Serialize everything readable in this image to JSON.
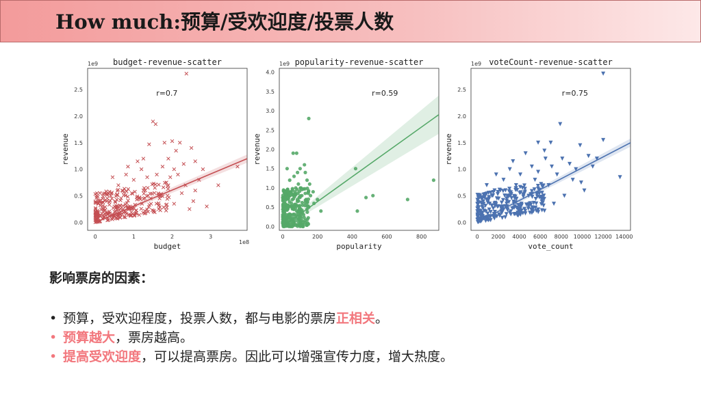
{
  "header": {
    "title": "How much:预算/受欢迎度/投票人数"
  },
  "summary": {
    "heading": "影响票房的因素：",
    "bullets": [
      {
        "parts": [
          {
            "text": "预算，受欢迎程度，投票人数，都与电影的票房",
            "hl": false
          },
          {
            "text": "正相关",
            "hl": true
          },
          {
            "text": "。",
            "hl": false
          }
        ],
        "dot": "normal"
      },
      {
        "parts": [
          {
            "text": "预算越大",
            "hl": true
          },
          {
            "text": "，票房越高。",
            "hl": false
          }
        ],
        "dot": "red"
      },
      {
        "parts": [
          {
            "text": "提高受欢迎度",
            "hl": true
          },
          {
            "text": "，可以提高票房。因此可以增强宣传力度，增大热度。",
            "hl": false
          }
        ],
        "dot": "red"
      }
    ]
  },
  "colors": {
    "accent": "#f2777d",
    "budget": "#c44e52",
    "popularity": "#55a868",
    "vote": "#4c72b0"
  },
  "chart_data": [
    {
      "type": "scatter",
      "title": "budget-revenue-scatter",
      "xlabel": "budget",
      "ylabel": "revenue",
      "x_offset_label": "1e8",
      "y_offset_label": "1e9",
      "xlim": [
        -0.2,
        3.95
      ],
      "ylim": [
        -0.15,
        2.9
      ],
      "xticks": [
        0,
        1,
        2,
        3
      ],
      "yticks": [
        0.0,
        0.5,
        1.0,
        1.5,
        2.0,
        2.5
      ],
      "r_label": "r=0.7",
      "marker": "x",
      "color": "#c44e52",
      "regression": {
        "x": [
          0,
          3.95
        ],
        "y": [
          0.0,
          1.2
        ]
      },
      "points": [
        [
          2.37,
          2.8
        ],
        [
          1.5,
          1.9
        ],
        [
          1.57,
          1.85
        ],
        [
          2.0,
          1.53
        ],
        [
          2.2,
          1.5
        ],
        [
          1.4,
          1.47
        ],
        [
          1.8,
          1.5
        ],
        [
          2.1,
          1.35
        ],
        [
          2.5,
          1.4
        ],
        [
          2.8,
          1.0
        ],
        [
          2.6,
          0.6
        ],
        [
          2.55,
          0.4
        ],
        [
          2.45,
          0.25
        ],
        [
          1.95,
          0.85
        ],
        [
          3.7,
          1.05
        ],
        [
          2.9,
          0.3
        ],
        [
          3.2,
          0.7
        ],
        [
          0.8,
          0.9
        ],
        [
          1.0,
          0.8
        ],
        [
          1.2,
          1.0
        ],
        [
          0.6,
          0.7
        ],
        [
          0.4,
          0.5
        ],
        [
          1.3,
          0.6
        ],
        [
          1.6,
          0.9
        ],
        [
          1.7,
          0.5
        ],
        [
          0.9,
          0.3
        ],
        [
          0.3,
          0.4
        ],
        [
          2.3,
          1.1
        ],
        [
          1.9,
          1.2
        ],
        [
          1.1,
          1.15
        ],
        [
          2.7,
          0.8
        ],
        [
          0.5,
          0.2
        ],
        [
          1.45,
          0.35
        ],
        [
          1.85,
          0.75
        ],
        [
          2.25,
          0.55
        ],
        [
          1.25,
          1.2
        ],
        [
          0.7,
          0.6
        ],
        [
          2.05,
          1.0
        ],
        [
          1.55,
          0.65
        ],
        [
          1.75,
          1.05
        ],
        [
          2.15,
          0.9
        ],
        [
          2.6,
          1.15
        ],
        [
          0.95,
          0.55
        ],
        [
          1.15,
          0.45
        ],
        [
          1.35,
          0.85
        ],
        [
          0.45,
          0.85
        ],
        [
          0.85,
          1.05
        ],
        [
          2.35,
          0.7
        ],
        [
          2.05,
          0.35
        ],
        [
          1.65,
          0.25
        ]
      ]
    },
    {
      "type": "scatter",
      "title": "popularity-revenue-scatter",
      "xlabel": "popularity",
      "ylabel": "revenue",
      "y_offset_label": "1e9",
      "xlim": [
        -20,
        900
      ],
      "ylim": [
        -0.1,
        4.1
      ],
      "xticks": [
        0,
        200,
        400,
        600,
        800
      ],
      "yticks": [
        0.0,
        0.5,
        1.0,
        1.5,
        2.0,
        2.5,
        3.0,
        3.5,
        4.0
      ],
      "r_label": "r=0.59",
      "marker": "o",
      "color": "#55a868",
      "regression": {
        "x": [
          0,
          900
        ],
        "y": [
          0.0,
          2.9
        ]
      },
      "points": [
        [
          150,
          2.8
        ],
        [
          60,
          1.9
        ],
        [
          80,
          1.9
        ],
        [
          25,
          1.5
        ],
        [
          100,
          1.5
        ],
        [
          130,
          1.4
        ],
        [
          420,
          1.5
        ],
        [
          430,
          0.4
        ],
        [
          480,
          0.75
        ],
        [
          520,
          0.8
        ],
        [
          720,
          0.7
        ],
        [
          870,
          1.2
        ],
        [
          150,
          0.5
        ],
        [
          180,
          0.6
        ],
        [
          200,
          0.7
        ],
        [
          220,
          0.4
        ],
        [
          110,
          0.8
        ],
        [
          90,
          1.1
        ],
        [
          40,
          1.2
        ],
        [
          70,
          0.9
        ],
        [
          120,
          0.3
        ],
        [
          160,
          0.8
        ],
        [
          140,
          1.2
        ],
        [
          50,
          0.6
        ],
        [
          85,
          1.4
        ],
        [
          105,
          1.0
        ],
        [
          175,
          0.9
        ],
        [
          125,
          1.6
        ],
        [
          65,
          1.3
        ],
        [
          30,
          0.9
        ],
        [
          95,
          0.45
        ],
        [
          155,
          1.1
        ],
        [
          115,
          0.55
        ],
        [
          75,
          1.0
        ],
        [
          135,
          0.7
        ]
      ]
    },
    {
      "type": "scatter",
      "title": "voteCount-revenue-scatter",
      "xlabel": "vote_count",
      "ylabel": "revenue",
      "y_offset_label": "1e9",
      "xlim": [
        -600,
        14600
      ],
      "ylim": [
        -0.15,
        2.9
      ],
      "xticks": [
        0,
        2000,
        4000,
        6000,
        8000,
        10000,
        12000,
        14000
      ],
      "yticks": [
        0.0,
        0.5,
        1.0,
        1.5,
        2.0,
        2.5
      ],
      "r_label": "r=0.75",
      "marker": "v",
      "color": "#4c72b0",
      "regression": {
        "x": [
          0,
          14600
        ],
        "y": [
          0.0,
          1.5
        ]
      },
      "points": [
        [
          12000,
          2.8
        ],
        [
          7900,
          1.85
        ],
        [
          12000,
          1.55
        ],
        [
          9800,
          1.45
        ],
        [
          7000,
          1.5
        ],
        [
          5800,
          1.5
        ],
        [
          6500,
          1.2
        ],
        [
          8800,
          1.1
        ],
        [
          11000,
          1.05
        ],
        [
          13600,
          0.85
        ],
        [
          10200,
          0.6
        ],
        [
          9100,
          0.8
        ],
        [
          8300,
          0.5
        ],
        [
          7600,
          0.9
        ],
        [
          6800,
          0.7
        ],
        [
          5200,
          1.05
        ],
        [
          4600,
          1.3
        ],
        [
          4100,
          0.9
        ],
        [
          3700,
          0.7
        ],
        [
          3100,
          1.0
        ],
        [
          2500,
          0.8
        ],
        [
          2200,
          0.6
        ],
        [
          1800,
          0.9
        ],
        [
          1400,
          0.5
        ],
        [
          900,
          0.7
        ],
        [
          7300,
          0.35
        ],
        [
          6100,
          0.45
        ],
        [
          5500,
          0.8
        ],
        [
          10600,
          1.25
        ],
        [
          9400,
          1.0
        ],
        [
          8100,
          1.2
        ],
        [
          4900,
          0.5
        ],
        [
          5800,
          0.95
        ],
        [
          7100,
          1.05
        ],
        [
          6400,
          1.35
        ],
        [
          3400,
          1.15
        ],
        [
          2800,
          0.45
        ],
        [
          9900,
          0.75
        ],
        [
          11400,
          1.2
        ],
        [
          4300,
          0.65
        ]
      ]
    }
  ]
}
